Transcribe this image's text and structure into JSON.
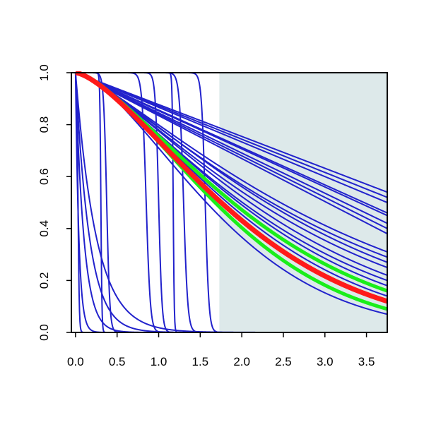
{
  "chart_data": {
    "type": "line",
    "title": "",
    "xlabel": "",
    "ylabel": "",
    "xlim": [
      -0.05,
      3.75
    ],
    "ylim": [
      0,
      1
    ],
    "grid": false,
    "legend": "none",
    "x_ticks": [
      "0.0",
      "0.5",
      "1.0",
      "1.5",
      "2.0",
      "2.5",
      "3.0",
      "3.5"
    ],
    "y_ticks": [
      "0.0",
      "0.2",
      "0.4",
      "0.6",
      "0.8",
      "1.0"
    ],
    "shaded_region": {
      "x_from": 1.73,
      "x_to": 3.75,
      "color": "#dde9ea"
    },
    "colors": {
      "blue": "#2222cc",
      "red": "#ff1a1a",
      "green": "#1aee1a"
    },
    "series": [
      {
        "group": "blue",
        "kind": "linear",
        "end": 0.54
      },
      {
        "group": "blue",
        "kind": "linear",
        "end": 0.52
      },
      {
        "group": "blue",
        "kind": "linear",
        "end": 0.5
      },
      {
        "group": "blue",
        "kind": "linear",
        "end": 0.46
      },
      {
        "group": "blue",
        "kind": "linear",
        "end": 0.45
      },
      {
        "group": "blue",
        "kind": "linear",
        "end": 0.42
      },
      {
        "group": "blue",
        "kind": "linear",
        "end": 0.4
      },
      {
        "group": "blue",
        "kind": "linear",
        "end": 0.38
      },
      {
        "group": "blue",
        "kind": "curve",
        "end": 0.31,
        "p": 1.25
      },
      {
        "group": "blue",
        "kind": "curve",
        "end": 0.29,
        "p": 1.25
      },
      {
        "group": "blue",
        "kind": "curve",
        "end": 0.27,
        "p": 1.3
      },
      {
        "group": "blue",
        "kind": "curve",
        "end": 0.25,
        "p": 1.3
      },
      {
        "group": "blue",
        "kind": "curve",
        "end": 0.22,
        "p": 1.35
      },
      {
        "group": "blue",
        "kind": "curve",
        "end": 0.2,
        "p": 1.35
      },
      {
        "group": "blue",
        "kind": "curve",
        "end": 0.18,
        "p": 1.4
      },
      {
        "group": "blue",
        "kind": "curve",
        "end": 0.16,
        "p": 1.4
      },
      {
        "group": "blue",
        "kind": "curve",
        "end": 0.14,
        "p": 1.45
      },
      {
        "group": "blue",
        "kind": "curve",
        "end": 0.07,
        "p": 1.55
      },
      {
        "group": "blue",
        "kind": "exp",
        "rate": 25
      },
      {
        "group": "blue",
        "kind": "exp",
        "rate": 10
      },
      {
        "group": "blue",
        "kind": "exp",
        "rate": 6
      },
      {
        "group": "blue",
        "kind": "exp",
        "rate": 4
      },
      {
        "group": "blue",
        "kind": "step",
        "t0": 0.0,
        "t1": 0.06
      },
      {
        "group": "blue",
        "kind": "step",
        "t0": 0.28,
        "t1": 0.33
      },
      {
        "group": "blue",
        "kind": "step",
        "t0": 0.3,
        "t1": 0.45
      },
      {
        "group": "blue",
        "kind": "step",
        "t0": 0.75,
        "t1": 0.95
      },
      {
        "group": "blue",
        "kind": "step",
        "t0": 0.92,
        "t1": 1.08
      },
      {
        "group": "blue",
        "kind": "step",
        "t0": 1.15,
        "t1": 1.2
      },
      {
        "group": "blue",
        "kind": "step",
        "t0": 1.2,
        "t1": 1.4
      },
      {
        "group": "blue",
        "kind": "step",
        "t0": 1.47,
        "t1": 1.65
      },
      {
        "group": "green",
        "kind": "curve",
        "end": 0.16,
        "p": 1.42
      },
      {
        "group": "green",
        "kind": "curve",
        "end": 0.09,
        "p": 1.55
      },
      {
        "group": "red",
        "kind": "curve",
        "end": 0.12,
        "p": 1.47
      }
    ]
  }
}
